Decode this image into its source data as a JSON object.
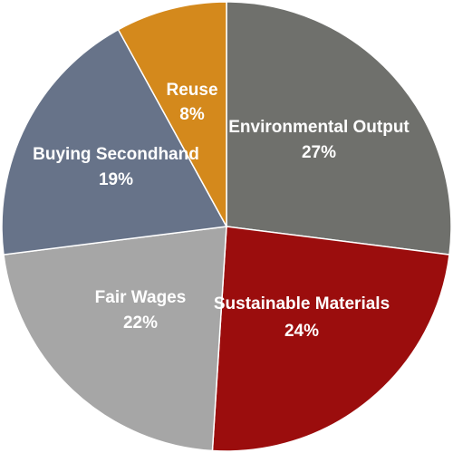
{
  "chart_data": {
    "type": "pie",
    "title": "",
    "legend": "none",
    "slices": [
      {
        "label": "Environmental Output",
        "value": 27,
        "value_label": "27%",
        "color": "#6f706c"
      },
      {
        "label": "Sustainable Materials",
        "value": 24,
        "value_label": "24%",
        "color": "#9b0d0d"
      },
      {
        "label": "Fair Wages",
        "value": 22,
        "value_label": "22%",
        "color": "#a6a6a6"
      },
      {
        "label": "Buying Secondhand",
        "value": 19,
        "value_label": "19%",
        "color": "#677389"
      },
      {
        "label": "Reuse",
        "value": 8,
        "value_label": "8%",
        "color": "#d4891c"
      }
    ]
  }
}
